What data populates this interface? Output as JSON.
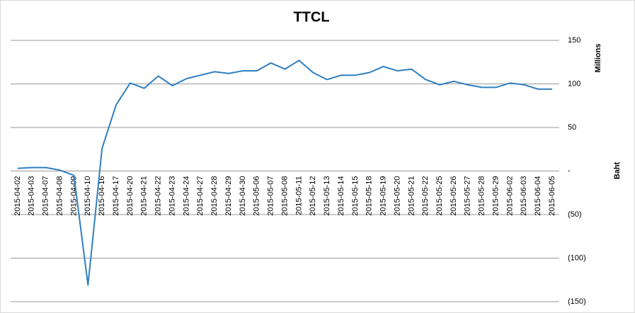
{
  "chart_data": {
    "type": "line",
    "title": "TTCL",
    "y_unit_label": "Millions",
    "y_label": "Baht",
    "categories": [
      "2015-04-02",
      "2015-04-03",
      "2015-04-07",
      "2015-04-08",
      "2015-04-09",
      "2015-04-10",
      "2015-04-16",
      "2015-04-17",
      "2015-04-20",
      "2015-04-21",
      "2015-04-22",
      "2015-04-23",
      "2015-04-24",
      "2015-04-27",
      "2015-04-28",
      "2015-04-29",
      "2015-04-30",
      "2015-05-06",
      "2015-05-07",
      "2015-05-08",
      "2015-05-11",
      "2015-05-12",
      "2015-05-13",
      "2015-05-14",
      "2015-05-15",
      "2015-05-18",
      "2015-05-19",
      "2015-05-20",
      "2015-05-21",
      "2015-05-22",
      "2015-05-25",
      "2015-05-26",
      "2015-05-27",
      "2015-05-28",
      "2015-05-29",
      "2015-06-02",
      "2015-06-03",
      "2015-06-04",
      "2015-06-05"
    ],
    "values": [
      3,
      4,
      4,
      1,
      -5,
      -131,
      26,
      76,
      101,
      95,
      109,
      98,
      106,
      110,
      114,
      112,
      115,
      115,
      124,
      117,
      127,
      113,
      105,
      110,
      110,
      113,
      120,
      115,
      117,
      105,
      99,
      103,
      99,
      96,
      96,
      101,
      99,
      94,
      94
    ],
    "color": "#2f7fc1",
    "ylim": [
      -150,
      150
    ],
    "yticks": [
      {
        "value": -150,
        "label": "(150)"
      },
      {
        "value": -100,
        "label": "(100)"
      },
      {
        "value": -50,
        "label": "(50)"
      },
      {
        "value": 0,
        "label": "-"
      },
      50,
      100,
      150
    ],
    "grid": true,
    "y_axis_side": "right"
  }
}
